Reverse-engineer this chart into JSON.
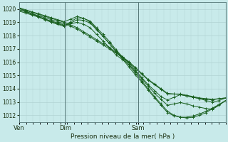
{
  "bg_color": "#c8eaea",
  "grid_color": "#b0c8c8",
  "line_color": "#1a6020",
  "marker_color": "#1a6020",
  "ylabel_ticks": [
    1012,
    1013,
    1014,
    1015,
    1016,
    1017,
    1018,
    1019,
    1020
  ],
  "xlim": [
    0,
    90
  ],
  "ylim": [
    1011.5,
    1020.5
  ],
  "xlabel": "Pression niveau de la mer( hPa )",
  "xtick_positions": [
    0,
    20,
    52
  ],
  "xtick_labels": [
    "Ven",
    "Dim",
    "Sam"
  ],
  "lines": [
    [
      1020.1,
      1019.95,
      1019.8,
      1019.65,
      1019.5,
      1019.35,
      1019.2,
      1019.05,
      1019.25,
      1019.45,
      1019.3,
      1019.05,
      1018.5,
      1017.95,
      1017.4,
      1016.85,
      1016.4,
      1015.95,
      1015.4,
      1014.85,
      1014.3,
      1013.85,
      1013.4,
      1013.15,
      1013.35,
      1013.55,
      1013.45,
      1013.35,
      1013.25,
      1013.1,
      1013.0,
      1013.1,
      1013.3
    ],
    [
      1019.85,
      1019.7,
      1019.55,
      1019.4,
      1019.25,
      1019.1,
      1018.95,
      1018.8,
      1018.9,
      1019.0,
      1018.85,
      1018.6,
      1018.1,
      1017.6,
      1017.1,
      1016.55,
      1016.2,
      1015.85,
      1015.3,
      1014.75,
      1014.2,
      1013.65,
      1013.2,
      1012.75,
      1012.85,
      1012.95,
      1012.85,
      1012.7,
      1012.6,
      1012.5,
      1012.45,
      1012.75,
      1013.1
    ],
    [
      1019.95,
      1019.8,
      1019.65,
      1019.5,
      1019.35,
      1019.2,
      1019.05,
      1018.9,
      1018.7,
      1018.5,
      1018.2,
      1017.9,
      1017.6,
      1017.3,
      1017.0,
      1016.7,
      1016.35,
      1016.0,
      1015.55,
      1015.1,
      1014.65,
      1014.3,
      1013.95,
      1013.6,
      1013.6,
      1013.6,
      1013.5,
      1013.4,
      1013.3,
      1013.25,
      1013.2,
      1013.25,
      1013.3
    ],
    [
      1020.05,
      1019.9,
      1019.75,
      1019.6,
      1019.45,
      1019.3,
      1019.15,
      1019.0,
      1018.8,
      1018.6,
      1018.3,
      1018.0,
      1017.7,
      1017.4,
      1017.1,
      1016.75,
      1016.4,
      1016.05,
      1015.6,
      1015.15,
      1014.7,
      1014.35,
      1014.0,
      1013.65,
      1013.6,
      1013.55,
      1013.45,
      1013.35,
      1013.25,
      1013.2,
      1013.15,
      1013.25,
      1013.3
    ],
    [
      1019.95,
      1019.8,
      1019.6,
      1019.4,
      1019.2,
      1019.0,
      1018.85,
      1018.7,
      1018.95,
      1019.2,
      1019.15,
      1018.95,
      1018.45,
      1017.95,
      1017.4,
      1016.8,
      1016.25,
      1015.65,
      1015.05,
      1014.5,
      1013.9,
      1013.3,
      1012.75,
      1012.2,
      1011.95,
      1011.85,
      1011.85,
      1011.95,
      1012.1,
      1012.3,
      1012.55,
      1012.8,
      1013.1
    ],
    [
      1020.05,
      1019.85,
      1019.65,
      1019.45,
      1019.25,
      1019.05,
      1018.9,
      1018.75,
      1019.05,
      1019.35,
      1019.3,
      1019.1,
      1018.6,
      1018.1,
      1017.55,
      1016.95,
      1016.4,
      1015.8,
      1015.2,
      1014.6,
      1014.0,
      1013.4,
      1012.85,
      1012.3,
      1012.0,
      1011.85,
      1011.8,
      1011.85,
      1012.0,
      1012.2,
      1012.5,
      1012.8,
      1013.1
    ]
  ]
}
